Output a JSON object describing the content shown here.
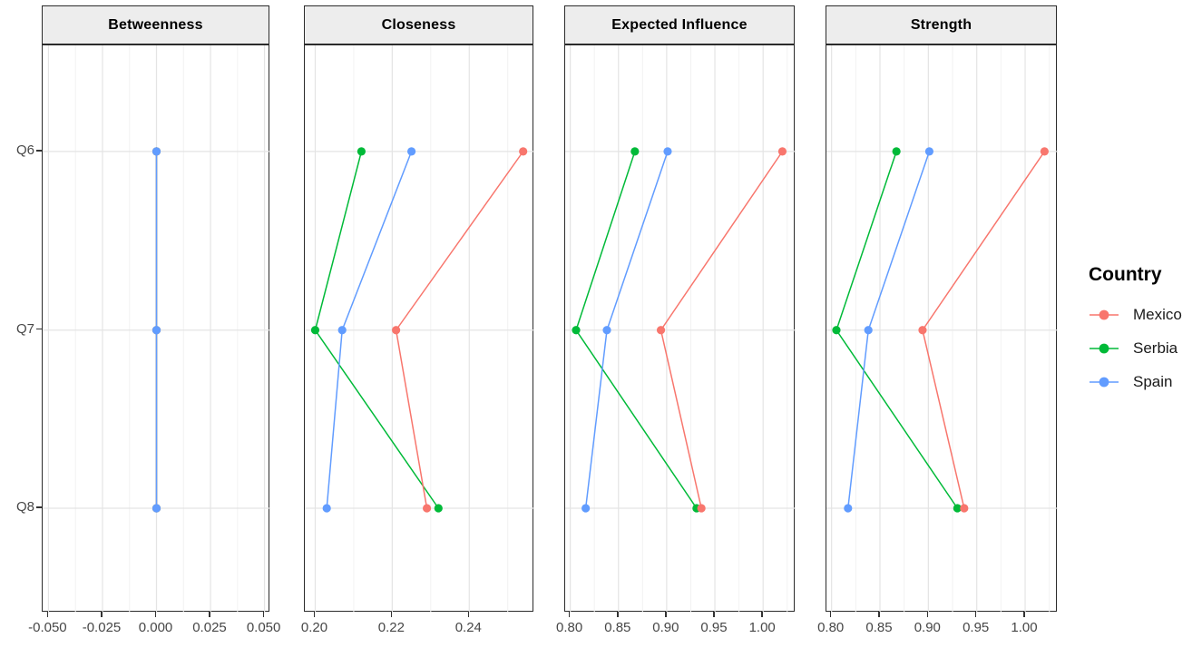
{
  "figure_name": "centrality-by-country-faceted-plot",
  "colors": {
    "background": "#ffffff",
    "panel_border": "#2b2b2b",
    "strip_fill": "#ededed",
    "grid_major": "#e4e4e4",
    "grid_minor": "#f2f2f2",
    "axis_text": "#474747",
    "mexico": "#F8766D",
    "serbia": "#00BA38",
    "spain": "#619CFF"
  },
  "legend": {
    "title": "Country",
    "position": "right",
    "entries": [
      {
        "label": "Mexico",
        "color": "#F8766D"
      },
      {
        "label": "Serbia",
        "color": "#00BA38"
      },
      {
        "label": "Spain",
        "color": "#619CFF"
      }
    ]
  },
  "chart_data": {
    "type": "line",
    "description": "Faceted dot-and-line plot of network centrality measures by item (Q6-Q8) for three countries",
    "y_categories": [
      "Q6",
      "Q7",
      "Q8"
    ],
    "grid": "on",
    "legend_position": "right",
    "draw_order": [
      "Serbia",
      "Mexico",
      "Spain"
    ],
    "facets": [
      {
        "title": "Betweenness",
        "xlim": [
          -0.0527,
          0.0527
        ],
        "ticks": [
          -0.05,
          -0.025,
          0.0,
          0.025,
          0.05
        ],
        "tick_labels": [
          "-0.050",
          "-0.025",
          "0.000",
          "0.025",
          "0.050"
        ],
        "minor_ticks": [
          -0.0375,
          -0.0125,
          0.0125,
          0.0375
        ],
        "series": [
          {
            "name": "Mexico",
            "values": [
              0.0,
              0.0,
              0.0
            ]
          },
          {
            "name": "Serbia",
            "values": [
              0.0,
              0.0,
              0.0
            ]
          },
          {
            "name": "Spain",
            "values": [
              0.0,
              0.0,
              0.0
            ]
          }
        ]
      },
      {
        "title": "Closeness",
        "xlim": [
          0.1973,
          0.2569
        ],
        "ticks": [
          0.2,
          0.22,
          0.24
        ],
        "tick_labels": [
          "0.20",
          "0.22",
          "0.24"
        ],
        "minor_ticks": [
          0.21,
          0.23,
          0.25
        ],
        "series": [
          {
            "name": "Mexico",
            "values": [
              0.254,
              0.221,
              0.229
            ]
          },
          {
            "name": "Serbia",
            "values": [
              0.212,
              0.2,
              0.232
            ]
          },
          {
            "name": "Spain",
            "values": [
              0.225,
              0.207,
              0.203
            ]
          }
        ]
      },
      {
        "title": "Expected Influence",
        "xlim": [
          0.7947,
          1.0337
        ],
        "ticks": [
          0.8,
          0.85,
          0.9,
          0.95,
          1.0
        ],
        "tick_labels": [
          "0.80",
          "0.85",
          "0.90",
          "0.95",
          "1.00"
        ],
        "minor_ticks": [
          0.825,
          0.875,
          0.925,
          0.975,
          1.025
        ],
        "series": [
          {
            "name": "Mexico",
            "values": [
              1.02,
              0.894,
              0.936
            ]
          },
          {
            "name": "Serbia",
            "values": [
              0.867,
              0.806,
              0.931
            ]
          },
          {
            "name": "Spain",
            "values": [
              0.901,
              0.838,
              0.816
            ]
          }
        ]
      },
      {
        "title": "Strength",
        "xlim": [
          0.7947,
          1.0337
        ],
        "ticks": [
          0.8,
          0.85,
          0.9,
          0.95,
          1.0
        ],
        "tick_labels": [
          "0.80",
          "0.85",
          "0.90",
          "0.95",
          "1.00"
        ],
        "minor_ticks": [
          0.825,
          0.875,
          0.925,
          0.975,
          1.025
        ],
        "series": [
          {
            "name": "Mexico",
            "values": [
              1.02,
              0.894,
              0.937
            ]
          },
          {
            "name": "Serbia",
            "values": [
              0.867,
              0.805,
              0.93
            ]
          },
          {
            "name": "Spain",
            "values": [
              0.901,
              0.838,
              0.817
            ]
          }
        ]
      }
    ]
  }
}
